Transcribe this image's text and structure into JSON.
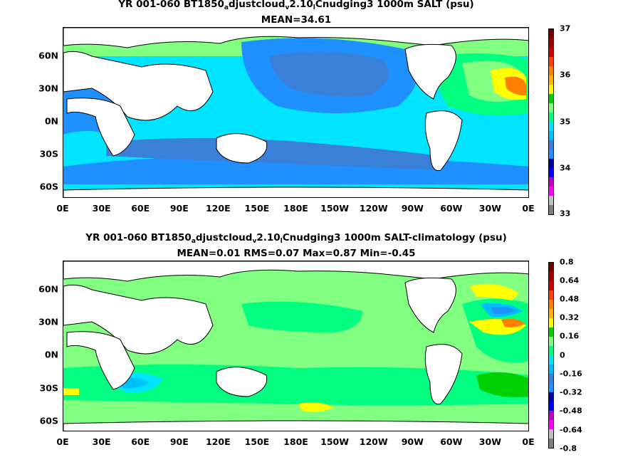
{
  "panels": [
    {
      "title_parts": [
        "YR 001-060 BT1850",
        "a",
        "djustcloud",
        "v",
        "2.10",
        "l",
        "Cnudging3 1000m SALT (psu)"
      ],
      "stats": "MEAN=34.61",
      "x_ticks": [
        "0E",
        "30E",
        "60E",
        "90E",
        "120E",
        "150E",
        "180E",
        "150W",
        "120W",
        "90W",
        "60W",
        "30W",
        "0E"
      ],
      "y_ticks": [
        "60N",
        "30N",
        "0N",
        "30S",
        "60S"
      ],
      "colorbar_labels": [
        "33",
        "34",
        "35",
        "36",
        "37"
      ],
      "colorbar_colors": [
        "#7f7f7f",
        "#bfbfbf",
        "#ff00ff",
        "#c000c0",
        "#0000ff",
        "#0000a0",
        "#1e90ff",
        "#3a7fd8",
        "#00bfff",
        "#00e5ff",
        "#00ff80",
        "#80ff80",
        "#00d000",
        "#ffff00",
        "#ffb000",
        "#ff7f00",
        "#ff4000",
        "#d00000",
        "#a00000",
        "#700000"
      ]
    },
    {
      "title_parts": [
        "YR 001-060 BT1850",
        "a",
        "djustcloud",
        "v",
        "2.10",
        "l",
        "Cnudging3 1000m SALT-climatology (psu)"
      ],
      "stats": "MEAN=0.01   RMS=0.07   Max=0.87   Min=-0.45",
      "x_ticks": [
        "0E",
        "30E",
        "60E",
        "90E",
        "120E",
        "150E",
        "180E",
        "150W",
        "120W",
        "90W",
        "60W",
        "30W",
        "0E"
      ],
      "y_ticks": [
        "60N",
        "30N",
        "0N",
        "30S",
        "60S"
      ],
      "colorbar_labels": [
        "-0.8",
        "-0.64",
        "-0.48",
        "-0.32",
        "-0.16",
        "0",
        "0.16",
        "0.32",
        "0.48",
        "0.64",
        "0.8"
      ],
      "colorbar_colors": [
        "#7f7f7f",
        "#bfbfbf",
        "#ff00ff",
        "#c000c0",
        "#0000ff",
        "#0000a0",
        "#1e90ff",
        "#3a7fd8",
        "#00bfff",
        "#00e5ff",
        "#00ff80",
        "#80ff80",
        "#00d000",
        "#ffff00",
        "#ffb000",
        "#ff7f00",
        "#ff4000",
        "#d00000",
        "#a00000",
        "#700000"
      ]
    }
  ],
  "colors": {
    "land": "#ffffff",
    "coast": "#000000",
    "frame": "#000000"
  }
}
